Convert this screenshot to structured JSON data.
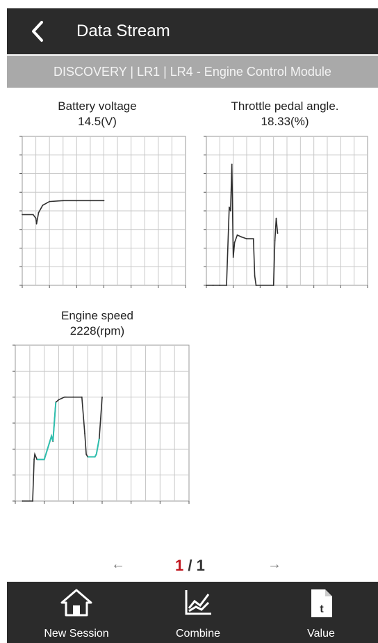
{
  "header": {
    "title": "Data Stream"
  },
  "breadcrumb": "DISCOVERY | LR1 | LR4 - Engine Control Module",
  "charts_meta": [
    {
      "name": "Battery voltage",
      "value": "14.5(V)"
    },
    {
      "name": "Throttle pedal angle.",
      "value": "18.33(%)"
    },
    {
      "name": "Engine speed",
      "value": "2228(rpm)"
    }
  ],
  "chart_data": [
    {
      "type": "line",
      "title": "Battery voltage",
      "subtitle": "14.5(V)",
      "xlim": [
        0,
        12
      ],
      "ylim": [
        0,
        8
      ],
      "grid": true,
      "series": [
        {
          "x": [
            0,
            0.8,
            1,
            1.05,
            1.2,
            1.5,
            2,
            3,
            4,
            5,
            6
          ],
          "y": [
            3.8,
            3.8,
            3.6,
            3.3,
            3.9,
            4.3,
            4.5,
            4.55,
            4.55,
            4.55,
            4.55
          ]
        }
      ]
    },
    {
      "type": "line",
      "title": "Throttle pedal angle.",
      "subtitle": "18.33(%)",
      "xlim": [
        0,
        12
      ],
      "ylim": [
        0,
        8
      ],
      "grid": true,
      "series": [
        {
          "x": [
            0,
            0.5,
            1,
            1.5,
            1.7,
            1.8,
            1.9,
            2.0,
            2.1,
            2.3,
            2.6,
            3,
            3.5,
            3.6,
            3.7,
            5,
            5.1,
            5.2,
            5.3
          ],
          "y": [
            0,
            0,
            0,
            0,
            4.2,
            4.0,
            6.5,
            1.5,
            2.3,
            2.7,
            2.6,
            2.5,
            2.5,
            0.5,
            0,
            0,
            2.4,
            3.6,
            2.8
          ]
        }
      ]
    },
    {
      "type": "line",
      "title": "Engine speed",
      "subtitle": "2228(rpm)",
      "xlim": [
        0,
        12
      ],
      "ylim": [
        0,
        6
      ],
      "grid": true,
      "series": [
        {
          "x": [
            0.5,
            1.2,
            1.3,
            1.35,
            1.5,
            2,
            2.5,
            2.6,
            2.8,
            3,
            3.4,
            3.5,
            4,
            4.6,
            4.8,
            4.9,
            5,
            5.5,
            5.6,
            5.8,
            6
          ],
          "y": [
            0,
            0,
            1.6,
            1.8,
            1.6,
            1.6,
            2.5,
            2.3,
            3.8,
            3.9,
            4.0,
            4.0,
            4.0,
            4.0,
            2.6,
            1.8,
            1.7,
            1.7,
            1.8,
            2.4,
            4.0
          ]
        }
      ]
    }
  ],
  "pager": {
    "current": "1",
    "separator": " / ",
    "total": "1",
    "prev": "←",
    "next": "→"
  },
  "bottom_nav": [
    {
      "label": "New Session",
      "icon": "home-icon"
    },
    {
      "label": "Combine",
      "icon": "chart-combine-icon"
    },
    {
      "label": "Value",
      "icon": "document-value-icon"
    }
  ],
  "colors": {
    "bar": "#2b2b2b",
    "subbar": "#a9a9a9",
    "grid": "#c8c8c8",
    "line": "#2f2f2f",
    "accent_line": "#2fbfae",
    "page_current": "#c0151d"
  }
}
